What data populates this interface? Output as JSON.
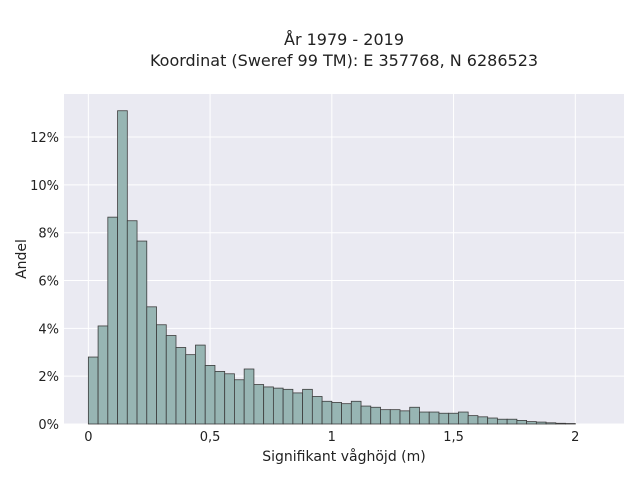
{
  "chart_data": {
    "type": "bar",
    "title_lines": [
      "År 1979 - 2019",
      "Koordinat (Sweref 99 TM): E 357768, N 6286523"
    ],
    "xlabel": "Signifikant våghöjd (m)",
    "ylabel": "Andel",
    "xlim": [
      -0.1,
      2.2
    ],
    "ylim": [
      0,
      13.8
    ],
    "x_ticks": [
      {
        "value": 0,
        "label": "0"
      },
      {
        "value": 0.5,
        "label": "0,5"
      },
      {
        "value": 1,
        "label": "1"
      },
      {
        "value": 1.5,
        "label": "1,5"
      },
      {
        "value": 2,
        "label": "2"
      }
    ],
    "y_ticks": [
      {
        "value": 0,
        "label": "0%"
      },
      {
        "value": 2,
        "label": "2%"
      },
      {
        "value": 4,
        "label": "4%"
      },
      {
        "value": 6,
        "label": "6%"
      },
      {
        "value": 8,
        "label": "8%"
      },
      {
        "value": 10,
        "label": "10%"
      },
      {
        "value": 12,
        "label": "12%"
      }
    ],
    "bin_start": 0,
    "bin_width": 0.04,
    "values": [
      2.8,
      4.1,
      8.65,
      13.1,
      8.5,
      7.65,
      4.9,
      4.15,
      3.7,
      3.2,
      2.9,
      3.3,
      2.45,
      2.2,
      2.1,
      1.85,
      2.3,
      1.65,
      1.55,
      1.5,
      1.45,
      1.3,
      1.45,
      1.15,
      0.95,
      0.9,
      0.85,
      0.95,
      0.75,
      0.7,
      0.6,
      0.6,
      0.55,
      0.7,
      0.5,
      0.5,
      0.45,
      0.45,
      0.5,
      0.35,
      0.3,
      0.25,
      0.2,
      0.2,
      0.15,
      0.1,
      0.08,
      0.05,
      0.03,
      0.02
    ],
    "colors": {
      "bar": "#97b5b3",
      "bar_edge": "#3c3c3c",
      "plot_bg": "#eaeaf2",
      "grid": "#ffffff"
    },
    "grid": true
  }
}
